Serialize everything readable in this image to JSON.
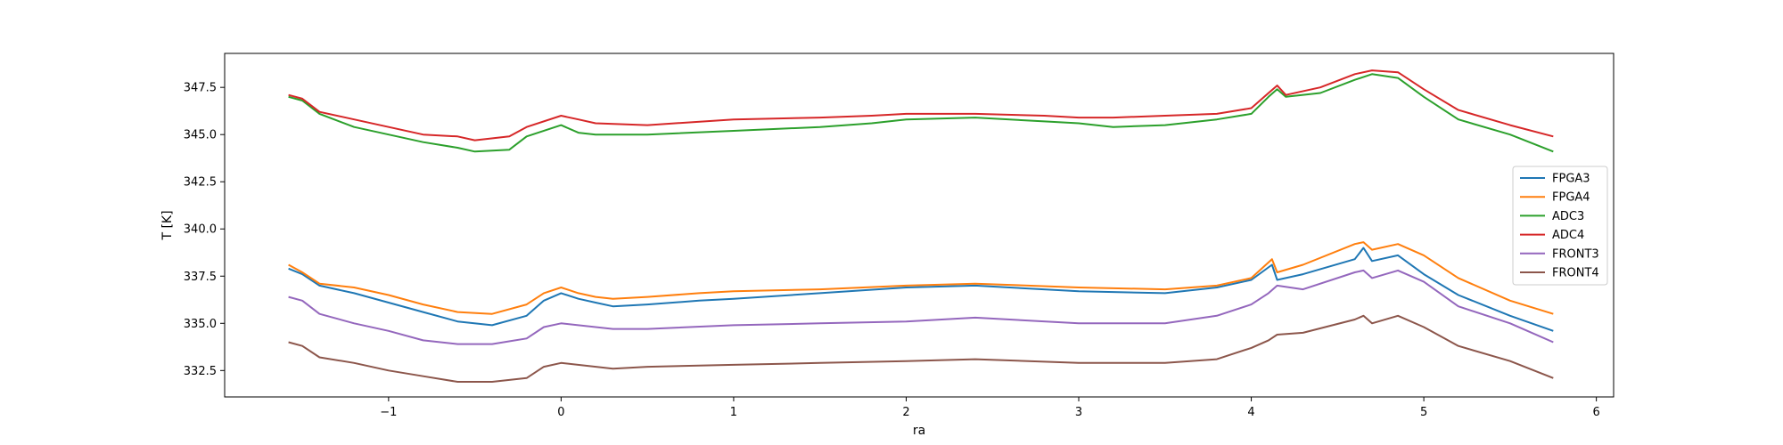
{
  "chart_data": {
    "type": "line",
    "title": "",
    "xlabel": "ra",
    "ylabel": "T [K]",
    "xlim": [
      -1.95,
      6.1
    ],
    "ylim": [
      331.1,
      349.3
    ],
    "xticks": [
      -1,
      0,
      1,
      2,
      3,
      4,
      5,
      6
    ],
    "xtick_labels": [
      "−1",
      "0",
      "1",
      "2",
      "3",
      "4",
      "5",
      "6"
    ],
    "yticks": [
      332.5,
      335.0,
      337.5,
      340.0,
      342.5,
      345.0,
      347.5
    ],
    "ytick_labels": [
      "332.5",
      "335.0",
      "337.5",
      "340.0",
      "342.5",
      "345.0",
      "347.5"
    ],
    "grid": false,
    "legend_position": "center-right",
    "series": [
      {
        "name": "FPGA3",
        "color": "#1f77b4",
        "x": [
          -1.58,
          -1.5,
          -1.4,
          -1.2,
          -1.0,
          -0.8,
          -0.6,
          -0.4,
          -0.2,
          -0.1,
          0.0,
          0.1,
          0.2,
          0.3,
          0.5,
          0.8,
          1.0,
          1.5,
          2.0,
          2.4,
          3.0,
          3.5,
          3.8,
          4.0,
          4.12,
          4.15,
          4.3,
          4.6,
          4.65,
          4.7,
          4.85,
          5.0,
          5.2,
          5.5,
          5.75
        ],
        "y": [
          337.9,
          337.6,
          337.0,
          336.6,
          336.1,
          335.6,
          335.1,
          334.9,
          335.4,
          336.2,
          336.6,
          336.3,
          336.1,
          335.9,
          336.0,
          336.2,
          336.3,
          336.6,
          336.9,
          337.0,
          336.7,
          336.6,
          336.9,
          337.3,
          338.1,
          337.3,
          337.6,
          338.4,
          339.0,
          338.3,
          338.6,
          337.6,
          336.5,
          335.4,
          334.6
        ]
      },
      {
        "name": "FPGA4",
        "color": "#ff7f0e",
        "x": [
          -1.58,
          -1.5,
          -1.4,
          -1.2,
          -1.0,
          -0.8,
          -0.6,
          -0.4,
          -0.2,
          -0.1,
          0.0,
          0.1,
          0.2,
          0.3,
          0.5,
          0.8,
          1.0,
          1.5,
          2.0,
          2.4,
          3.0,
          3.5,
          3.8,
          4.0,
          4.12,
          4.15,
          4.3,
          4.6,
          4.65,
          4.7,
          4.85,
          5.0,
          5.2,
          5.5,
          5.75
        ],
        "y": [
          338.1,
          337.7,
          337.1,
          336.9,
          336.5,
          336.0,
          335.6,
          335.5,
          336.0,
          336.6,
          336.9,
          336.6,
          336.4,
          336.3,
          336.4,
          336.6,
          336.7,
          336.8,
          337.0,
          337.1,
          336.9,
          336.8,
          337.0,
          337.4,
          338.4,
          337.7,
          338.1,
          339.2,
          339.3,
          338.9,
          339.2,
          338.6,
          337.4,
          336.2,
          335.5
        ]
      },
      {
        "name": "ADC3",
        "color": "#2ca02c",
        "x": [
          -1.58,
          -1.5,
          -1.4,
          -1.2,
          -1.0,
          -0.8,
          -0.6,
          -0.5,
          -0.3,
          -0.2,
          0.0,
          0.1,
          0.2,
          0.5,
          1.0,
          1.5,
          1.8,
          2.0,
          2.4,
          2.8,
          3.0,
          3.2,
          3.5,
          3.8,
          4.0,
          4.1,
          4.15,
          4.2,
          4.4,
          4.6,
          4.7,
          4.85,
          5.0,
          5.2,
          5.5,
          5.75
        ],
        "y": [
          347.0,
          346.8,
          346.1,
          345.4,
          345.0,
          344.6,
          344.3,
          344.1,
          344.2,
          344.9,
          345.5,
          345.1,
          345.0,
          345.0,
          345.2,
          345.4,
          345.6,
          345.8,
          345.9,
          345.7,
          345.6,
          345.4,
          345.5,
          345.8,
          346.1,
          347.0,
          347.4,
          347.0,
          347.2,
          347.9,
          348.2,
          348.0,
          347.0,
          345.8,
          345.0,
          344.1
        ]
      },
      {
        "name": "ADC4",
        "color": "#d62728",
        "x": [
          -1.58,
          -1.5,
          -1.4,
          -1.2,
          -1.0,
          -0.8,
          -0.6,
          -0.5,
          -0.3,
          -0.2,
          0.0,
          0.1,
          0.2,
          0.5,
          1.0,
          1.5,
          1.8,
          2.0,
          2.4,
          2.8,
          3.0,
          3.2,
          3.5,
          3.8,
          4.0,
          4.1,
          4.15,
          4.2,
          4.4,
          4.6,
          4.7,
          4.85,
          5.0,
          5.2,
          5.5,
          5.75
        ],
        "y": [
          347.1,
          346.9,
          346.2,
          345.8,
          345.4,
          345.0,
          344.9,
          344.7,
          344.9,
          345.4,
          346.0,
          345.8,
          345.6,
          345.5,
          345.8,
          345.9,
          346.0,
          346.1,
          346.1,
          346.0,
          345.9,
          345.9,
          346.0,
          346.1,
          346.4,
          347.2,
          347.6,
          347.1,
          347.5,
          348.2,
          348.4,
          348.3,
          347.4,
          346.3,
          345.5,
          344.9
        ]
      },
      {
        "name": "FRONT3",
        "color": "#9467bd",
        "x": [
          -1.58,
          -1.5,
          -1.4,
          -1.2,
          -1.0,
          -0.8,
          -0.6,
          -0.4,
          -0.2,
          -0.1,
          0.0,
          0.3,
          0.5,
          1.0,
          1.5,
          2.0,
          2.4,
          3.0,
          3.5,
          3.8,
          4.0,
          4.1,
          4.15,
          4.3,
          4.6,
          4.65,
          4.7,
          4.85,
          5.0,
          5.2,
          5.5,
          5.75
        ],
        "y": [
          336.4,
          336.2,
          335.5,
          335.0,
          334.6,
          334.1,
          333.9,
          333.9,
          334.2,
          334.8,
          335.0,
          334.7,
          334.7,
          334.9,
          335.0,
          335.1,
          335.3,
          335.0,
          335.0,
          335.4,
          336.0,
          336.6,
          337.0,
          336.8,
          337.7,
          337.8,
          337.4,
          337.8,
          337.2,
          335.9,
          335.0,
          334.0
        ]
      },
      {
        "name": "FRONT4",
        "color": "#8c564b",
        "x": [
          -1.58,
          -1.5,
          -1.4,
          -1.2,
          -1.0,
          -0.8,
          -0.6,
          -0.4,
          -0.2,
          -0.1,
          0.0,
          0.3,
          0.5,
          1.0,
          1.5,
          2.0,
          2.4,
          3.0,
          3.5,
          3.8,
          4.0,
          4.1,
          4.15,
          4.3,
          4.6,
          4.65,
          4.7,
          4.85,
          5.0,
          5.2,
          5.5,
          5.75
        ],
        "y": [
          334.0,
          333.8,
          333.2,
          332.9,
          332.5,
          332.2,
          331.9,
          331.9,
          332.1,
          332.7,
          332.9,
          332.6,
          332.7,
          332.8,
          332.9,
          333.0,
          333.1,
          332.9,
          332.9,
          333.1,
          333.7,
          334.1,
          334.4,
          334.5,
          335.2,
          335.4,
          335.0,
          335.4,
          334.8,
          333.8,
          333.0,
          332.1
        ]
      }
    ]
  }
}
